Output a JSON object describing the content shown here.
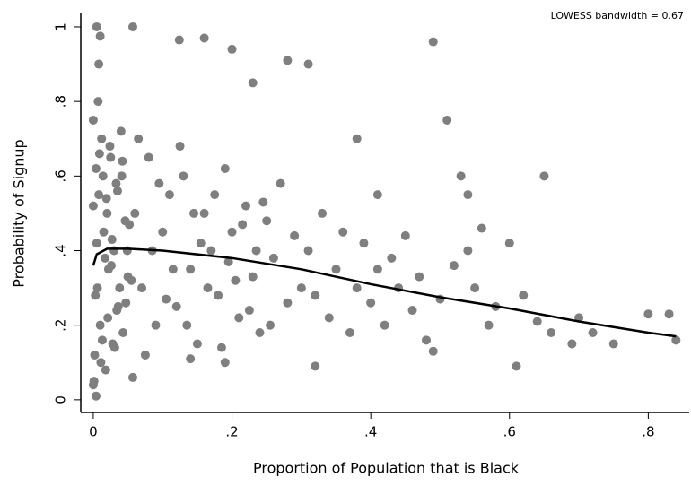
{
  "chart_data": {
    "type": "scatter",
    "annotation": "LOWESS bandwidth = 0.67",
    "xlabel": "Proportion of Population that is Black",
    "ylabel": "Probability of Signup",
    "xlim": [
      -0.018,
      0.859
    ],
    "ylim": [
      -0.034,
      1.036
    ],
    "xticks": [
      0,
      {
        "value": 0.2,
        "label": ".2"
      },
      {
        "value": 0.4,
        "label": ".4"
      },
      {
        "value": 0.6,
        "label": ".6"
      },
      {
        "value": 0.8,
        "label": ".8"
      }
    ],
    "yticks": [
      0,
      {
        "value": 0.2,
        "label": ".2"
      },
      {
        "value": 0.4,
        "label": ".4"
      },
      {
        "value": 0.6,
        "label": ".6"
      },
      {
        "value": 0.8,
        "label": ".8"
      },
      1
    ],
    "points": {
      "color": "#7f7f7f",
      "x": [
        0.005,
        0.01,
        0.057,
        0.008,
        0.124,
        0.16,
        0.2,
        0.28,
        0.31,
        0.23,
        0.49,
        0.51,
        0.38,
        0.65,
        0.53,
        0.41,
        0.54,
        0.6,
        0.56,
        0.54,
        0.8,
        0.83,
        0.84,
        0.75,
        0.69,
        0.61,
        0.64,
        0.72,
        0.49,
        0.32,
        0.19,
        0.14,
        0.057,
        0.004,
        0.0,
        0.0,
        0.002,
        0.004,
        0.006,
        0.008,
        0.01,
        0.012,
        0.015,
        0.018,
        0.02,
        0.022,
        0.025,
        0.028,
        0.03,
        0.033,
        0.036,
        0.04,
        0.043,
        0.046,
        0.05,
        0.0,
        0.003,
        0.007,
        0.011,
        0.014,
        0.017,
        0.021,
        0.024,
        0.027,
        0.031,
        0.035,
        0.038,
        0.042,
        0.047,
        0.052,
        0.001,
        0.005,
        0.009,
        0.013,
        0.019,
        0.026,
        0.034,
        0.041,
        0.049,
        0.055,
        0.06,
        0.07,
        0.08,
        0.09,
        0.1,
        0.11,
        0.12,
        0.13,
        0.14,
        0.15,
        0.16,
        0.17,
        0.18,
        0.19,
        0.2,
        0.21,
        0.22,
        0.23,
        0.24,
        0.25,
        0.26,
        0.27,
        0.28,
        0.29,
        0.3,
        0.065,
        0.075,
        0.085,
        0.095,
        0.105,
        0.115,
        0.125,
        0.135,
        0.145,
        0.155,
        0.165,
        0.175,
        0.185,
        0.195,
        0.205,
        0.215,
        0.225,
        0.235,
        0.245,
        0.255,
        0.31,
        0.32,
        0.33,
        0.34,
        0.35,
        0.36,
        0.37,
        0.38,
        0.39,
        0.4,
        0.41,
        0.42,
        0.43,
        0.44,
        0.45,
        0.46,
        0.47,
        0.48,
        0.5,
        0.52,
        0.55,
        0.57,
        0.58,
        0.62,
        0.66,
        0.7
      ],
      "y": [
        1.0,
        0.975,
        1.0,
        0.9,
        0.965,
        0.97,
        0.94,
        0.91,
        0.9,
        0.85,
        0.96,
        0.75,
        0.7,
        0.6,
        0.6,
        0.55,
        0.55,
        0.42,
        0.46,
        0.4,
        0.23,
        0.23,
        0.16,
        0.15,
        0.15,
        0.09,
        0.21,
        0.18,
        0.13,
        0.09,
        0.1,
        0.11,
        0.06,
        0.01,
        0.04,
        0.75,
        0.12,
        0.62,
        0.3,
        0.55,
        0.2,
        0.7,
        0.45,
        0.08,
        0.5,
        0.35,
        0.65,
        0.15,
        0.4,
        0.58,
        0.25,
        0.72,
        0.18,
        0.48,
        0.33,
        0.52,
        0.28,
        0.8,
        0.1,
        0.6,
        0.38,
        0.22,
        0.68,
        0.43,
        0.14,
        0.56,
        0.3,
        0.64,
        0.26,
        0.47,
        0.05,
        0.42,
        0.66,
        0.16,
        0.54,
        0.36,
        0.24,
        0.6,
        0.4,
        0.32,
        0.5,
        0.3,
        0.65,
        0.2,
        0.45,
        0.55,
        0.25,
        0.6,
        0.35,
        0.15,
        0.5,
        0.4,
        0.28,
        0.62,
        0.45,
        0.22,
        0.52,
        0.33,
        0.18,
        0.48,
        0.38,
        0.58,
        0.26,
        0.44,
        0.3,
        0.7,
        0.12,
        0.4,
        0.58,
        0.27,
        0.35,
        0.68,
        0.2,
        0.5,
        0.42,
        0.3,
        0.55,
        0.14,
        0.37,
        0.32,
        0.47,
        0.24,
        0.4,
        0.53,
        0.2,
        0.4,
        0.28,
        0.5,
        0.22,
        0.35,
        0.45,
        0.18,
        0.3,
        0.42,
        0.26,
        0.35,
        0.2,
        0.38,
        0.3,
        0.44,
        0.24,
        0.33,
        0.16,
        0.27,
        0.36,
        0.3,
        0.2,
        0.25,
        0.28,
        0.18,
        0.22
      ]
    },
    "lowess": {
      "color": "#000000",
      "x": [
        0,
        0.005,
        0.02,
        0.05,
        0.1,
        0.2,
        0.3,
        0.4,
        0.5,
        0.6,
        0.7,
        0.8,
        0.84
      ],
      "y": [
        0.36,
        0.39,
        0.405,
        0.405,
        0.4,
        0.38,
        0.35,
        0.31,
        0.275,
        0.245,
        0.21,
        0.18,
        0.17
      ]
    }
  }
}
